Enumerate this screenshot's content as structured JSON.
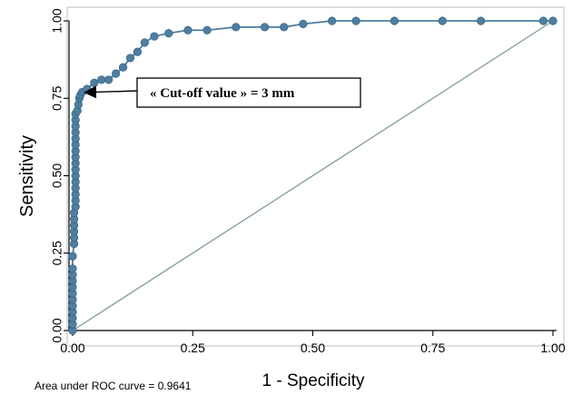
{
  "chart_data": {
    "type": "line",
    "title": "",
    "xlabel": "1 - Specificity",
    "ylabel": "Sensitivity",
    "xlim": [
      0,
      1
    ],
    "ylim": [
      0,
      1
    ],
    "grid": false,
    "legend": "none",
    "x_ticks": [
      "0.00",
      "0.25",
      "0.50",
      "0.75",
      "1.00"
    ],
    "y_ticks": [
      "0.00",
      "0.25",
      "0.50",
      "0.75",
      "1.00"
    ],
    "series": [
      {
        "kind": "roc-curve",
        "color": "#4f7ea0",
        "points": [
          [
            0.0,
            0.0
          ],
          [
            0.0,
            0.02
          ],
          [
            0.0,
            0.04
          ],
          [
            0.0,
            0.06
          ],
          [
            0.0,
            0.08
          ],
          [
            0.0,
            0.1
          ],
          [
            0.0,
            0.12
          ],
          [
            0.0,
            0.14
          ],
          [
            0.0,
            0.16
          ],
          [
            0.0,
            0.18
          ],
          [
            0.0,
            0.2
          ],
          [
            0.0,
            0.24
          ],
          [
            0.003,
            0.28
          ],
          [
            0.003,
            0.3
          ],
          [
            0.003,
            0.32
          ],
          [
            0.003,
            0.34
          ],
          [
            0.003,
            0.36
          ],
          [
            0.003,
            0.38
          ],
          [
            0.006,
            0.4
          ],
          [
            0.006,
            0.42
          ],
          [
            0.006,
            0.44
          ],
          [
            0.006,
            0.46
          ],
          [
            0.006,
            0.48
          ],
          [
            0.006,
            0.5
          ],
          [
            0.006,
            0.52
          ],
          [
            0.006,
            0.54
          ],
          [
            0.006,
            0.56
          ],
          [
            0.006,
            0.58
          ],
          [
            0.006,
            0.6
          ],
          [
            0.006,
            0.62
          ],
          [
            0.006,
            0.64
          ],
          [
            0.006,
            0.66
          ],
          [
            0.006,
            0.68
          ],
          [
            0.006,
            0.7
          ],
          [
            0.01,
            0.71
          ],
          [
            0.012,
            0.73
          ],
          [
            0.014,
            0.75
          ],
          [
            0.016,
            0.76
          ],
          [
            0.02,
            0.77
          ],
          [
            0.03,
            0.78
          ],
          [
            0.045,
            0.8
          ],
          [
            0.06,
            0.81
          ],
          [
            0.075,
            0.81
          ],
          [
            0.09,
            0.83
          ],
          [
            0.105,
            0.85
          ],
          [
            0.12,
            0.88
          ],
          [
            0.135,
            0.9
          ],
          [
            0.15,
            0.93
          ],
          [
            0.17,
            0.95
          ],
          [
            0.2,
            0.96
          ],
          [
            0.24,
            0.97
          ],
          [
            0.28,
            0.97
          ],
          [
            0.34,
            0.98
          ],
          [
            0.4,
            0.98
          ],
          [
            0.44,
            0.98
          ],
          [
            0.48,
            0.99
          ],
          [
            0.54,
            1.0
          ],
          [
            0.59,
            1.0
          ],
          [
            0.67,
            1.0
          ],
          [
            0.77,
            1.0
          ],
          [
            0.85,
            1.0
          ],
          [
            0.98,
            1.0
          ],
          [
            1.0,
            1.0
          ]
        ]
      },
      {
        "kind": "reference-line",
        "color": "#7f9d9a",
        "points": [
          [
            0.0,
            0.0
          ],
          [
            1.0,
            1.0
          ]
        ]
      }
    ],
    "annotation": {
      "text": "« Cut-off value » = 3 mm",
      "target": [
        0.016,
        0.76
      ]
    },
    "footnote": "Area under ROC curve = 0.9641"
  }
}
